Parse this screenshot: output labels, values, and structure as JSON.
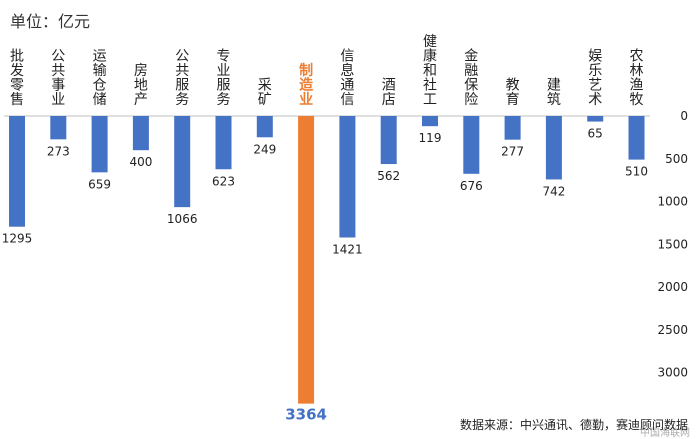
{
  "chart": {
    "unit_label": "单位：亿元",
    "source_text": "数据来源：中兴通讯、德勤，赛迪顾问数据",
    "watermark_text": "中国海联网"
  },
  "chart_data": {
    "type": "bar",
    "orientation": "downward",
    "categories": [
      "批发零售",
      "公共事业",
      "运输仓储",
      "房地产",
      "公共服务",
      "专业服务",
      "采矿",
      "制造业",
      "信息通信",
      "酒店",
      "健康和社工",
      "金融保险",
      "教育",
      "建筑",
      "娱乐艺术",
      "农林渔牧"
    ],
    "values": [
      1295,
      273,
      659,
      400,
      1066,
      623,
      249,
      3364,
      1421,
      562,
      119,
      676,
      277,
      742,
      65,
      510
    ],
    "highlight_index": 7,
    "colors": {
      "bar": "#4472C4",
      "highlight": "#ED7D31",
      "axis": "#BFBFBF",
      "text": "#222222"
    },
    "ylim": [
      0,
      3364
    ],
    "yticks": [
      0,
      500,
      1000,
      1500,
      2000,
      2500,
      3000
    ],
    "grid": false,
    "legend": "none"
  }
}
